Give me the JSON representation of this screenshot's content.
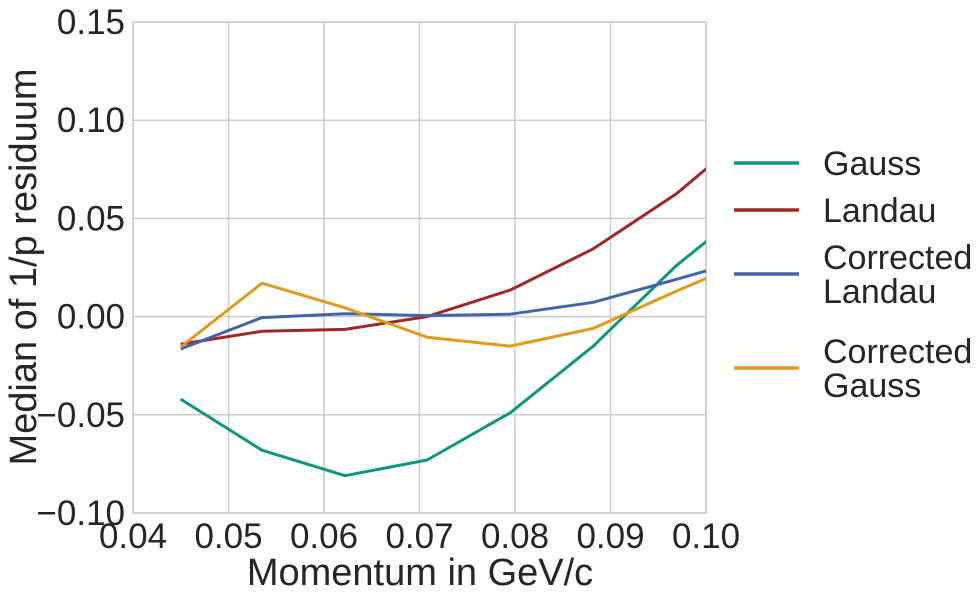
{
  "chart_data": {
    "type": "line",
    "title": "",
    "xlabel": "Momentum in GeV/c",
    "ylabel": "Median of 1/p residuum",
    "xlim": [
      0.04,
      0.1
    ],
    "ylim": [
      -0.1,
      0.15
    ],
    "xticks": [
      "0.04",
      "0.05",
      "0.06",
      "0.07",
      "0.08",
      "0.09",
      "0.10"
    ],
    "yticks": [
      "−0.10",
      "−0.05",
      "0.00",
      "0.05",
      "0.10",
      "0.15"
    ],
    "grid": true,
    "legend_position": "right",
    "x": [
      0.045,
      0.0535,
      0.0622,
      0.0708,
      0.0795,
      0.0882,
      0.0969,
      0.1056
    ],
    "series": [
      {
        "name": "Gauss",
        "color": "#10967f",
        "values": [
          -0.042,
          -0.068,
          -0.081,
          -0.073,
          -0.049,
          -0.015,
          0.026,
          0.06
        ]
      },
      {
        "name": "Landau",
        "color": "#a02828",
        "values": [
          -0.014,
          -0.0075,
          -0.0065,
          0.0,
          0.0135,
          0.0345,
          0.0625,
          0.098
        ]
      },
      {
        "name": "Corrected\nLandau",
        "color": "#4464a8",
        "values": [
          -0.0165,
          -0.0005,
          0.0015,
          0.0005,
          0.0012,
          0.0073,
          0.019,
          0.031
        ]
      },
      {
        "name": "Corrected\nGauss",
        "color": "#e09b1c",
        "values": [
          -0.0155,
          0.017,
          0.0045,
          -0.0105,
          -0.015,
          -0.006,
          0.013,
          0.031
        ]
      }
    ]
  }
}
